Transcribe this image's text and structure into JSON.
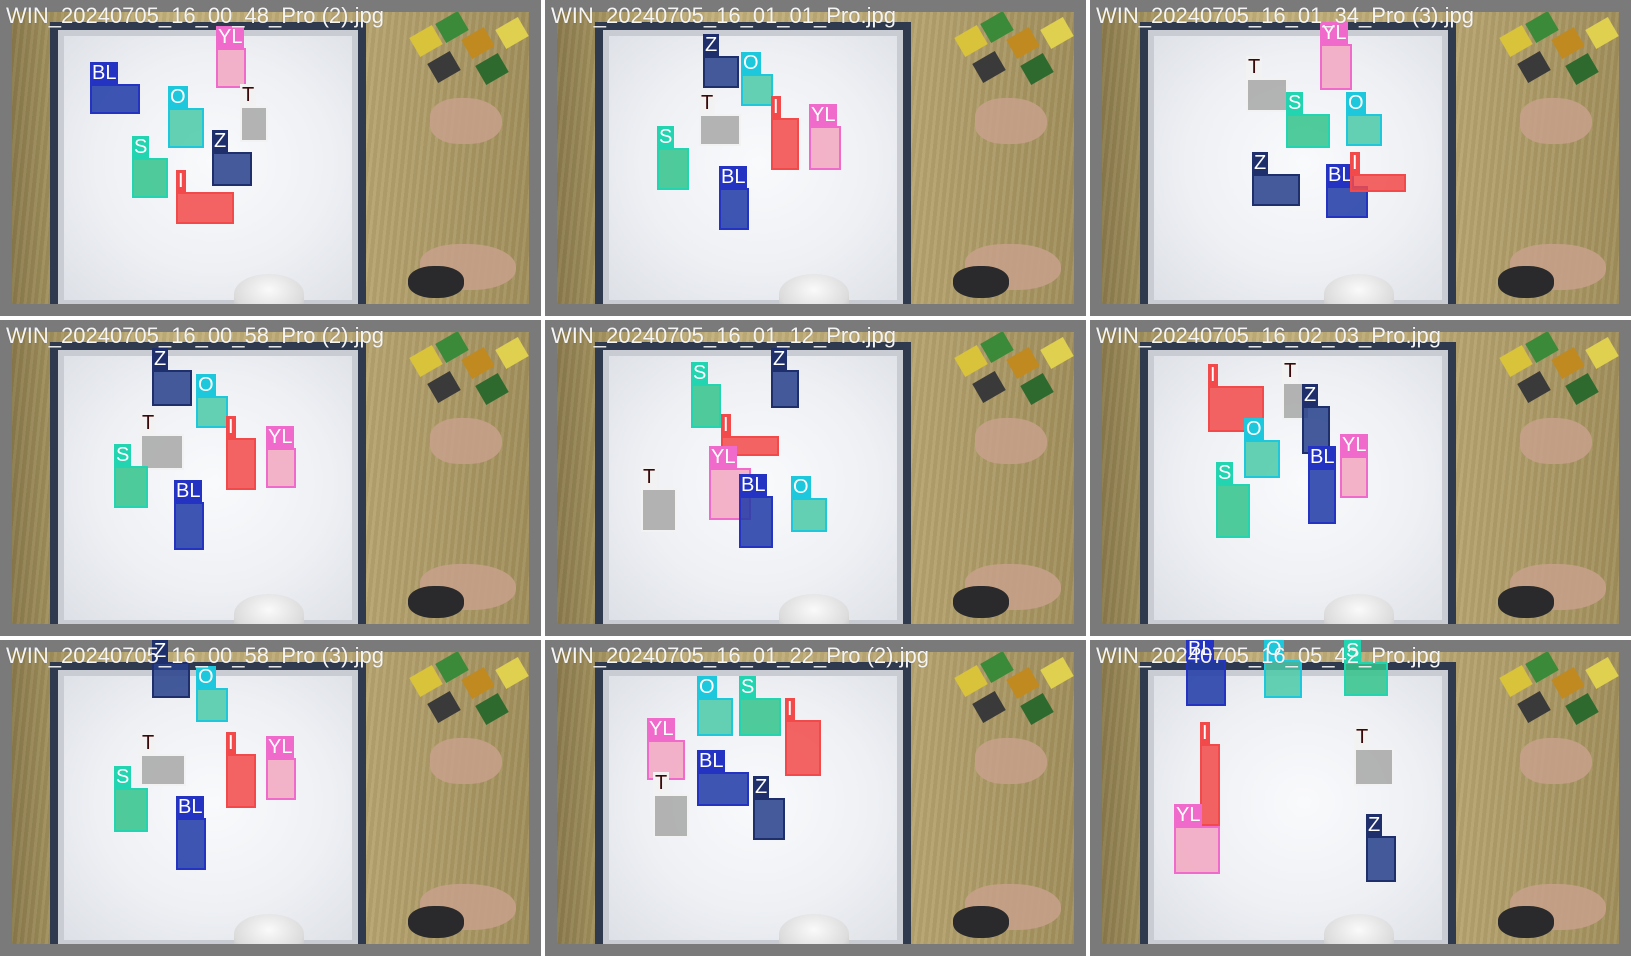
{
  "classes": {
    "BL": {
      "color": "#2433c2",
      "fill": "#203aa6",
      "label_text_color": "#ffffff"
    },
    "Z": {
      "color": "#1f2f6b",
      "fill": "#26408a",
      "label_text_color": "#ffffff"
    },
    "O": {
      "color": "#1ec8dc",
      "fill": "#4cc9a8",
      "label_text_color": "#ffffff"
    },
    "S": {
      "color": "#22d4b0",
      "fill": "#33c48c",
      "label_text_color": "#ffffff"
    },
    "T": {
      "color": "#f2f2f2",
      "fill": "#a8a8a8",
      "label_text_color": "#3a0a0a"
    },
    "YL": {
      "color": "#f06acb",
      "fill": "#f2a7c0",
      "label_text_color": "#ffffff"
    },
    "I": {
      "color": "#f24a4a",
      "fill": "#f24a4a",
      "label_text_color": "#ffffff"
    }
  },
  "tiles": [
    {
      "filename": "WIN_20240705_16_00_48_Pro (2).jpg",
      "detections": [
        {
          "cls": "BL",
          "label": "BL"
        },
        {
          "cls": "YL",
          "label": "YL"
        },
        {
          "cls": "O",
          "label": "O"
        },
        {
          "cls": "T",
          "label": "T"
        },
        {
          "cls": "Z",
          "label": "Z"
        },
        {
          "cls": "S",
          "label": "S"
        },
        {
          "cls": "I",
          "label": "I"
        }
      ]
    },
    {
      "filename": "WIN_20240705_16_01_01_Pro.jpg",
      "detections": [
        {
          "cls": "Z",
          "label": "Z"
        },
        {
          "cls": "O",
          "label": "O"
        },
        {
          "cls": "T",
          "label": "T"
        },
        {
          "cls": "S",
          "label": "S"
        },
        {
          "cls": "I",
          "label": "I"
        },
        {
          "cls": "YL",
          "label": "YL"
        },
        {
          "cls": "BL",
          "label": "BL"
        }
      ]
    },
    {
      "filename": "WIN_20240705_16_01_34_Pro (3).jpg",
      "detections": [
        {
          "cls": "YL",
          "label": "YL"
        },
        {
          "cls": "T",
          "label": "T"
        },
        {
          "cls": "S",
          "label": "S"
        },
        {
          "cls": "O",
          "label": "O"
        },
        {
          "cls": "Z",
          "label": "Z"
        },
        {
          "cls": "BL",
          "label": "BL"
        },
        {
          "cls": "I",
          "label": "I"
        }
      ]
    },
    {
      "filename": "WIN_20240705_16_00_58_Pro (2).jpg",
      "detections": [
        {
          "cls": "Z",
          "label": "Z"
        },
        {
          "cls": "O",
          "label": "O"
        },
        {
          "cls": "T",
          "label": "T"
        },
        {
          "cls": "I",
          "label": "I"
        },
        {
          "cls": "YL",
          "label": "YL"
        },
        {
          "cls": "S",
          "label": "S"
        },
        {
          "cls": "BL",
          "label": "BL"
        }
      ]
    },
    {
      "filename": "WIN_20240705_16_01_12_Pro.jpg",
      "detections": [
        {
          "cls": "S",
          "label": "S"
        },
        {
          "cls": "Z",
          "label": "Z"
        },
        {
          "cls": "I",
          "label": "I"
        },
        {
          "cls": "YL",
          "label": "YL"
        },
        {
          "cls": "T",
          "label": "T"
        },
        {
          "cls": "O",
          "label": "O"
        },
        {
          "cls": "BL",
          "label": "BL"
        }
      ]
    },
    {
      "filename": "WIN_20240705_16_02_03_Pro.jpg",
      "detections": [
        {
          "cls": "T",
          "label": "T"
        },
        {
          "cls": "I",
          "label": "I"
        },
        {
          "cls": "Z",
          "label": "Z"
        },
        {
          "cls": "O",
          "label": "O"
        },
        {
          "cls": "YL",
          "label": "YL"
        },
        {
          "cls": "BL",
          "label": "BL"
        },
        {
          "cls": "S",
          "label": "S"
        }
      ]
    },
    {
      "filename": "WIN_20240705_16_00_58_Pro (3).jpg",
      "detections": [
        {
          "cls": "Z",
          "label": "Z"
        },
        {
          "cls": "O",
          "label": "O"
        },
        {
          "cls": "T",
          "label": "T"
        },
        {
          "cls": "I",
          "label": "I"
        },
        {
          "cls": "YL",
          "label": "YL"
        },
        {
          "cls": "S",
          "label": "S"
        },
        {
          "cls": "BL",
          "label": "BL"
        }
      ]
    },
    {
      "filename": "WIN_20240705_16_01_22_Pro (2).jpg",
      "detections": [
        {
          "cls": "O",
          "label": "O"
        },
        {
          "cls": "S",
          "label": "S"
        },
        {
          "cls": "YL",
          "label": "YL"
        },
        {
          "cls": "I",
          "label": "I"
        },
        {
          "cls": "BL",
          "label": "BL"
        },
        {
          "cls": "T",
          "label": "T"
        },
        {
          "cls": "Z",
          "label": "Z"
        }
      ]
    },
    {
      "filename": "WIN_20240705_16_05_42_Pro.jpg",
      "detections": [
        {
          "cls": "BL",
          "label": "BL"
        },
        {
          "cls": "O",
          "label": "O"
        },
        {
          "cls": "S",
          "label": "S"
        },
        {
          "cls": "I",
          "label": "I"
        },
        {
          "cls": "T",
          "label": "T"
        },
        {
          "cls": "YL",
          "label": "YL"
        },
        {
          "cls": "Z",
          "label": "Z"
        }
      ]
    }
  ]
}
